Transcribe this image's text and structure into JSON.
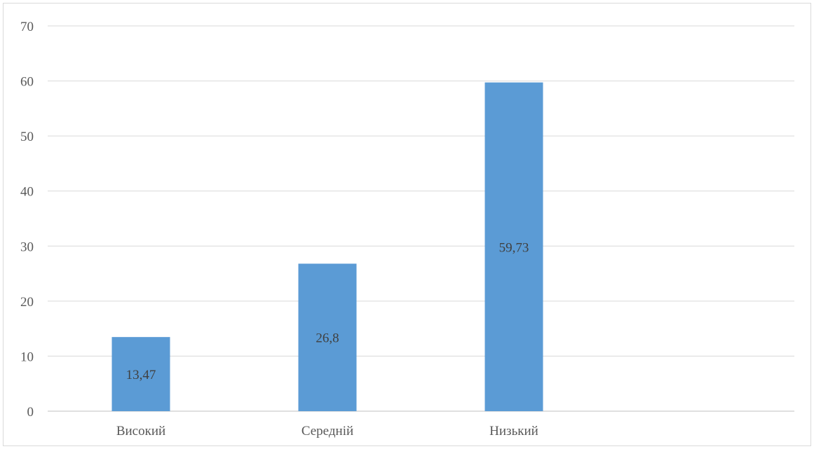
{
  "chart_data": {
    "type": "bar",
    "categories": [
      "Високий",
      "Середній",
      "Низький"
    ],
    "values": [
      13.47,
      26.8,
      59.73
    ],
    "data_labels": [
      "13,47",
      "26,8",
      "59,73"
    ],
    "ylim": [
      0,
      70
    ],
    "yticks": [
      0,
      10,
      20,
      30,
      40,
      50,
      60,
      70
    ],
    "ytick_labels": [
      "0",
      "10",
      "20",
      "30",
      "40",
      "50",
      "60",
      "70"
    ],
    "title": "",
    "xlabel": "",
    "ylabel": "",
    "grid": true,
    "legend": "none",
    "colors": {
      "bar": "#5b9bd5",
      "grid": "#d9d9d9",
      "axis": "#bfbfbf",
      "tick_text": "#595959",
      "label_text": "#404040"
    }
  }
}
